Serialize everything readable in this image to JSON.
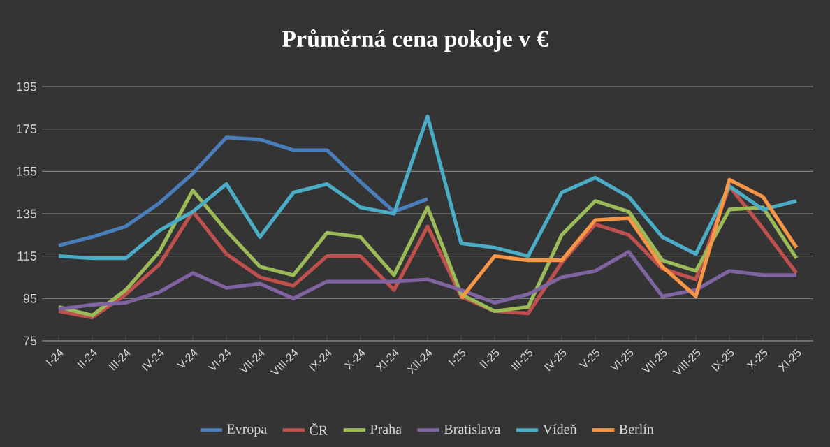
{
  "chart_data": {
    "type": "line",
    "title": "Průměrná cena pokoje v €",
    "categories": [
      "I-24",
      "II-24",
      "III-24",
      "IV-24",
      "V-24",
      "VI-24",
      "VII-24",
      "VIII-24",
      "IX-24",
      "X-24",
      "XI-24",
      "XII-24",
      "I-25",
      "II-25",
      "III-25",
      "IV-25",
      "V-25",
      "VI-25",
      "VII-25",
      "VIII-25",
      "IX-25",
      "X-25",
      "XI-25"
    ],
    "series": [
      {
        "name": "Evropa",
        "color": "#4a7ebb",
        "values": [
          120,
          124,
          129,
          140,
          154,
          171,
          170,
          165,
          165,
          150,
          136,
          142,
          null,
          null,
          null,
          null,
          null,
          null,
          null,
          null,
          null,
          null,
          null
        ]
      },
      {
        "name": "ČR",
        "color": "#c0504d",
        "values": [
          89,
          86,
          97,
          111,
          136,
          116,
          105,
          101,
          115,
          115,
          99,
          129,
          96,
          89,
          88,
          112,
          130,
          125,
          109,
          104,
          148,
          128,
          107
        ]
      },
      {
        "name": "Praha",
        "color": "#9bbb59",
        "values": [
          91,
          87,
          99,
          117,
          146,
          127,
          110,
          106,
          126,
          124,
          106,
          138,
          97,
          89,
          91,
          125,
          141,
          136,
          113,
          108,
          137,
          138,
          114
        ]
      },
      {
        "name": "Bratislava",
        "color": "#8064a2",
        "values": [
          90,
          92,
          93,
          98,
          107,
          100,
          102,
          95,
          103,
          103,
          103,
          104,
          99,
          93,
          97,
          105,
          108,
          117,
          96,
          99,
          108,
          106,
          106
        ]
      },
      {
        "name": "Vídeň",
        "color": "#4bacc6",
        "values": [
          115,
          114,
          114,
          127,
          136,
          149,
          124,
          145,
          149,
          138,
          135,
          181,
          121,
          119,
          115,
          145,
          152,
          143,
          124,
          116,
          148,
          137,
          141
        ]
      },
      {
        "name": "Berlín",
        "color": "#f79646",
        "values": [
          null,
          null,
          null,
          null,
          null,
          null,
          null,
          null,
          null,
          null,
          null,
          null,
          95,
          115,
          113,
          113,
          132,
          133,
          110,
          96,
          151,
          143,
          119
        ]
      }
    ],
    "ylim": [
      75,
      195
    ],
    "yticks": [
      75,
      95,
      115,
      135,
      155,
      175,
      195
    ],
    "grid": "y",
    "legend": "bottom",
    "marker": "none",
    "line_style": "solid"
  }
}
